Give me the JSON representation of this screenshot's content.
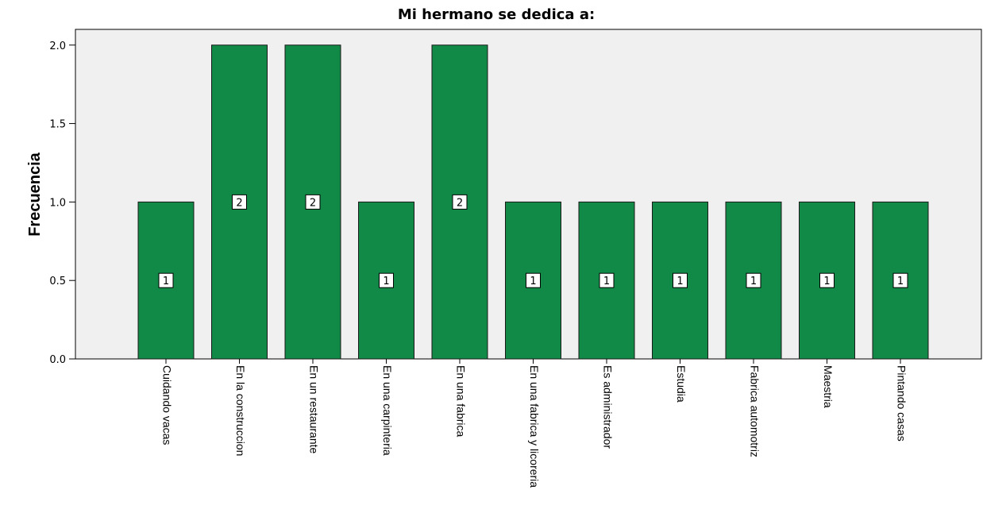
{
  "chart_data": {
    "type": "bar",
    "title": "Mi hermano se dedica a:",
    "y_label": "Frecuencia",
    "categories": [
      "Cuidando vacas",
      "En la construccion",
      "En un restaurante",
      "En una carpinteria",
      "En una fabrica",
      "En una fabrica y licoreria",
      "Es administrador",
      "Estudia",
      "Fabrica automotriz",
      "Maestria",
      "Pintando casas"
    ],
    "values": [
      1,
      2,
      2,
      1,
      2,
      1,
      1,
      1,
      1,
      1,
      1
    ],
    "color": "#128a47",
    "ylim": [
      0,
      2.1
    ],
    "yticks": [
      {
        "value": 0,
        "label": "0.0"
      },
      {
        "value": 0.5,
        "label": "0.5"
      },
      {
        "value": 1,
        "label": "1.0"
      },
      {
        "value": 1.5,
        "label": "1.5"
      },
      {
        "value": 2,
        "label": "2.0"
      }
    ],
    "grid": false
  }
}
